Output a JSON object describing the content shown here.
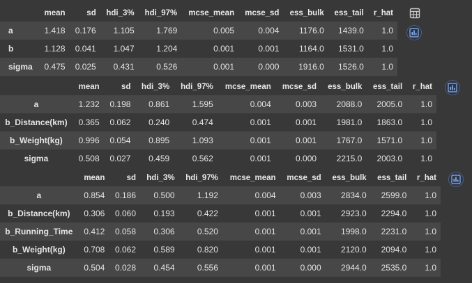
{
  "tables": [
    {
      "columns": [
        "",
        "mean",
        "sd",
        "hdi_3%",
        "hdi_97%",
        "mcse_mean",
        "mcse_sd",
        "ess_bulk",
        "ess_tail",
        "r_hat"
      ],
      "rows": [
        [
          "a",
          "1.418",
          "0.176",
          "1.105",
          "1.769",
          "0.005",
          "0.004",
          "1176.0",
          "1439.0",
          "1.0"
        ],
        [
          "b",
          "1.128",
          "0.041",
          "1.047",
          "1.204",
          "0.001",
          "0.001",
          "1164.0",
          "1531.0",
          "1.0"
        ],
        [
          "sigma",
          "0.475",
          "0.025",
          "0.431",
          "0.526",
          "0.001",
          "0.000",
          "1916.0",
          "1526.0",
          "1.0"
        ]
      ]
    },
    {
      "columns": [
        "",
        "mean",
        "sd",
        "hdi_3%",
        "hdi_97%",
        "mcse_mean",
        "mcse_sd",
        "ess_bulk",
        "ess_tail",
        "r_hat"
      ],
      "rows": [
        [
          "a",
          "1.232",
          "0.198",
          "0.861",
          "1.595",
          "0.004",
          "0.003",
          "2088.0",
          "2005.0",
          "1.0"
        ],
        [
          "b_Distance(km)",
          "0.365",
          "0.062",
          "0.240",
          "0.474",
          "0.001",
          "0.001",
          "1981.0",
          "1863.0",
          "1.0"
        ],
        [
          "b_Weight(kg)",
          "0.996",
          "0.054",
          "0.895",
          "1.093",
          "0.001",
          "0.001",
          "1767.0",
          "1571.0",
          "1.0"
        ],
        [
          "sigma",
          "0.508",
          "0.027",
          "0.459",
          "0.562",
          "0.001",
          "0.000",
          "2215.0",
          "2003.0",
          "1.0"
        ]
      ]
    },
    {
      "columns": [
        "",
        "mean",
        "sd",
        "hdi_3%",
        "hdi_97%",
        "mcse_mean",
        "mcse_sd",
        "ess_bulk",
        "ess_tail",
        "r_hat"
      ],
      "rows": [
        [
          "a",
          "0.854",
          "0.186",
          "0.500",
          "1.192",
          "0.004",
          "0.003",
          "2834.0",
          "2599.0",
          "1.0"
        ],
        [
          "b_Distance(km)",
          "0.306",
          "0.060",
          "0.193",
          "0.422",
          "0.001",
          "0.001",
          "2923.0",
          "2294.0",
          "1.0"
        ],
        [
          "b_Running_Time",
          "0.412",
          "0.058",
          "0.306",
          "0.520",
          "0.001",
          "0.001",
          "1998.0",
          "2231.0",
          "1.0"
        ],
        [
          "b_Weight(kg)",
          "0.708",
          "0.062",
          "0.589",
          "0.820",
          "0.001",
          "0.001",
          "2120.0",
          "2094.0",
          "1.0"
        ],
        [
          "sigma",
          "0.504",
          "0.028",
          "0.454",
          "0.556",
          "0.001",
          "0.000",
          "2944.0",
          "2535.0",
          "1.0"
        ]
      ]
    }
  ],
  "icons": {
    "table": "table-icon",
    "chart": "bar-chart-icon"
  },
  "colors": {
    "background": "#383838",
    "row_stripe": "#474747",
    "chart_button_bg": "#2a3448",
    "icon_accent": "#8fb3e8"
  }
}
